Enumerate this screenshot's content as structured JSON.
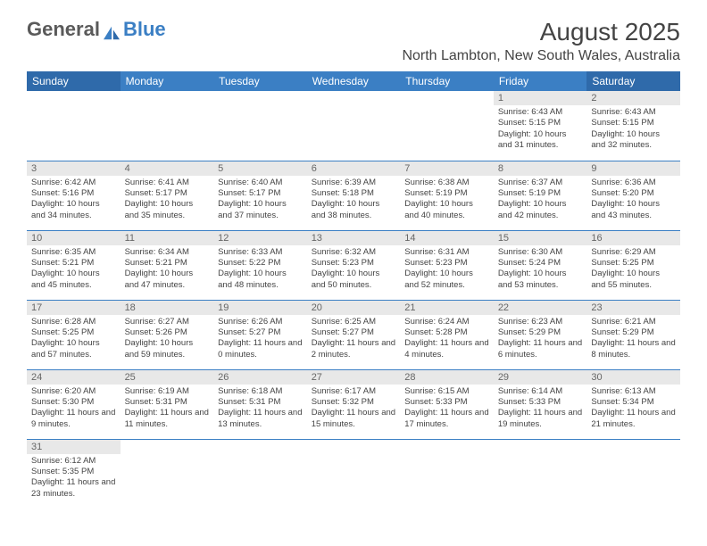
{
  "logo": {
    "part1": "General",
    "part2": "Blue"
  },
  "title": "August 2025",
  "location": "North Lambton, New South Wales, Australia",
  "day_headers": [
    "Sunday",
    "Monday",
    "Tuesday",
    "Wednesday",
    "Thursday",
    "Friday",
    "Saturday"
  ],
  "colors": {
    "header_bg": "#3b7fc4",
    "weekend_header_bg": "#2f6aaa",
    "daynum_bg": "#e8e8e8",
    "border": "#3b7fc4"
  },
  "weeks": [
    [
      null,
      null,
      null,
      null,
      null,
      {
        "num": "1",
        "sunrise": "Sunrise: 6:43 AM",
        "sunset": "Sunset: 5:15 PM",
        "daylight": "Daylight: 10 hours and 31 minutes."
      },
      {
        "num": "2",
        "sunrise": "Sunrise: 6:43 AM",
        "sunset": "Sunset: 5:15 PM",
        "daylight": "Daylight: 10 hours and 32 minutes."
      }
    ],
    [
      {
        "num": "3",
        "sunrise": "Sunrise: 6:42 AM",
        "sunset": "Sunset: 5:16 PM",
        "daylight": "Daylight: 10 hours and 34 minutes."
      },
      {
        "num": "4",
        "sunrise": "Sunrise: 6:41 AM",
        "sunset": "Sunset: 5:17 PM",
        "daylight": "Daylight: 10 hours and 35 minutes."
      },
      {
        "num": "5",
        "sunrise": "Sunrise: 6:40 AM",
        "sunset": "Sunset: 5:17 PM",
        "daylight": "Daylight: 10 hours and 37 minutes."
      },
      {
        "num": "6",
        "sunrise": "Sunrise: 6:39 AM",
        "sunset": "Sunset: 5:18 PM",
        "daylight": "Daylight: 10 hours and 38 minutes."
      },
      {
        "num": "7",
        "sunrise": "Sunrise: 6:38 AM",
        "sunset": "Sunset: 5:19 PM",
        "daylight": "Daylight: 10 hours and 40 minutes."
      },
      {
        "num": "8",
        "sunrise": "Sunrise: 6:37 AM",
        "sunset": "Sunset: 5:19 PM",
        "daylight": "Daylight: 10 hours and 42 minutes."
      },
      {
        "num": "9",
        "sunrise": "Sunrise: 6:36 AM",
        "sunset": "Sunset: 5:20 PM",
        "daylight": "Daylight: 10 hours and 43 minutes."
      }
    ],
    [
      {
        "num": "10",
        "sunrise": "Sunrise: 6:35 AM",
        "sunset": "Sunset: 5:21 PM",
        "daylight": "Daylight: 10 hours and 45 minutes."
      },
      {
        "num": "11",
        "sunrise": "Sunrise: 6:34 AM",
        "sunset": "Sunset: 5:21 PM",
        "daylight": "Daylight: 10 hours and 47 minutes."
      },
      {
        "num": "12",
        "sunrise": "Sunrise: 6:33 AM",
        "sunset": "Sunset: 5:22 PM",
        "daylight": "Daylight: 10 hours and 48 minutes."
      },
      {
        "num": "13",
        "sunrise": "Sunrise: 6:32 AM",
        "sunset": "Sunset: 5:23 PM",
        "daylight": "Daylight: 10 hours and 50 minutes."
      },
      {
        "num": "14",
        "sunrise": "Sunrise: 6:31 AM",
        "sunset": "Sunset: 5:23 PM",
        "daylight": "Daylight: 10 hours and 52 minutes."
      },
      {
        "num": "15",
        "sunrise": "Sunrise: 6:30 AM",
        "sunset": "Sunset: 5:24 PM",
        "daylight": "Daylight: 10 hours and 53 minutes."
      },
      {
        "num": "16",
        "sunrise": "Sunrise: 6:29 AM",
        "sunset": "Sunset: 5:25 PM",
        "daylight": "Daylight: 10 hours and 55 minutes."
      }
    ],
    [
      {
        "num": "17",
        "sunrise": "Sunrise: 6:28 AM",
        "sunset": "Sunset: 5:25 PM",
        "daylight": "Daylight: 10 hours and 57 minutes."
      },
      {
        "num": "18",
        "sunrise": "Sunrise: 6:27 AM",
        "sunset": "Sunset: 5:26 PM",
        "daylight": "Daylight: 10 hours and 59 minutes."
      },
      {
        "num": "19",
        "sunrise": "Sunrise: 6:26 AM",
        "sunset": "Sunset: 5:27 PM",
        "daylight": "Daylight: 11 hours and 0 minutes."
      },
      {
        "num": "20",
        "sunrise": "Sunrise: 6:25 AM",
        "sunset": "Sunset: 5:27 PM",
        "daylight": "Daylight: 11 hours and 2 minutes."
      },
      {
        "num": "21",
        "sunrise": "Sunrise: 6:24 AM",
        "sunset": "Sunset: 5:28 PM",
        "daylight": "Daylight: 11 hours and 4 minutes."
      },
      {
        "num": "22",
        "sunrise": "Sunrise: 6:23 AM",
        "sunset": "Sunset: 5:29 PM",
        "daylight": "Daylight: 11 hours and 6 minutes."
      },
      {
        "num": "23",
        "sunrise": "Sunrise: 6:21 AM",
        "sunset": "Sunset: 5:29 PM",
        "daylight": "Daylight: 11 hours and 8 minutes."
      }
    ],
    [
      {
        "num": "24",
        "sunrise": "Sunrise: 6:20 AM",
        "sunset": "Sunset: 5:30 PM",
        "daylight": "Daylight: 11 hours and 9 minutes."
      },
      {
        "num": "25",
        "sunrise": "Sunrise: 6:19 AM",
        "sunset": "Sunset: 5:31 PM",
        "daylight": "Daylight: 11 hours and 11 minutes."
      },
      {
        "num": "26",
        "sunrise": "Sunrise: 6:18 AM",
        "sunset": "Sunset: 5:31 PM",
        "daylight": "Daylight: 11 hours and 13 minutes."
      },
      {
        "num": "27",
        "sunrise": "Sunrise: 6:17 AM",
        "sunset": "Sunset: 5:32 PM",
        "daylight": "Daylight: 11 hours and 15 minutes."
      },
      {
        "num": "28",
        "sunrise": "Sunrise: 6:15 AM",
        "sunset": "Sunset: 5:33 PM",
        "daylight": "Daylight: 11 hours and 17 minutes."
      },
      {
        "num": "29",
        "sunrise": "Sunrise: 6:14 AM",
        "sunset": "Sunset: 5:33 PM",
        "daylight": "Daylight: 11 hours and 19 minutes."
      },
      {
        "num": "30",
        "sunrise": "Sunrise: 6:13 AM",
        "sunset": "Sunset: 5:34 PM",
        "daylight": "Daylight: 11 hours and 21 minutes."
      }
    ],
    [
      {
        "num": "31",
        "sunrise": "Sunrise: 6:12 AM",
        "sunset": "Sunset: 5:35 PM",
        "daylight": "Daylight: 11 hours and 23 minutes."
      },
      null,
      null,
      null,
      null,
      null,
      null
    ]
  ]
}
